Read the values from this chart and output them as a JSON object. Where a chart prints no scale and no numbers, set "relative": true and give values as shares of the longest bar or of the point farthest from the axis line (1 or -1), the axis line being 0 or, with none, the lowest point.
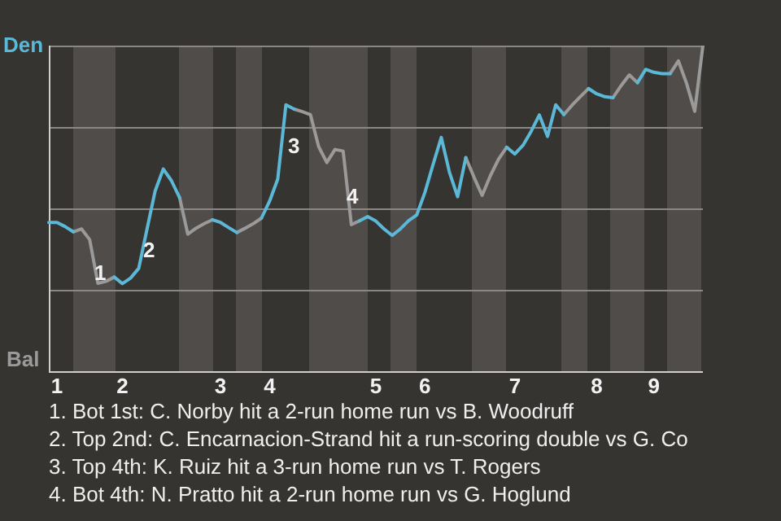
{
  "chart_data": {
    "type": "line",
    "relative": true,
    "categories": [
      null,
      "1",
      null,
      null,
      null,
      null,
      null,
      null,
      null,
      "2",
      null,
      null,
      null,
      null,
      null,
      null,
      null,
      null,
      null,
      null,
      null,
      "3",
      null,
      null,
      null,
      null,
      null,
      "4",
      null,
      null,
      null,
      null,
      null,
      null,
      null,
      null,
      null,
      null,
      null,
      null,
      "5",
      null,
      null,
      null,
      null,
      null,
      "6",
      null,
      null,
      null,
      null,
      null,
      null,
      null,
      null,
      null,
      null,
      "7",
      null,
      null,
      null,
      null,
      null,
      null,
      null,
      null,
      null,
      "8",
      null,
      null,
      null,
      null,
      null,
      null,
      "9",
      null,
      null,
      null,
      null,
      null,
      null
    ],
    "series": [
      {
        "color": "#5bb8d6",
        "values": [
          0.457,
          0.457,
          0.444,
          0.428,
          null,
          null,
          null,
          null,
          0.289,
          0.269,
          0.286,
          0.316,
          0.435,
          0.553,
          0.621,
          0.585,
          0.533,
          null,
          null,
          null,
          0.465,
          0.457,
          0.441,
          0.426,
          null,
          null,
          0.47,
          0.522,
          0.59,
          0.818,
          0.805,
          null,
          null,
          null,
          null,
          null,
          null,
          null,
          0.462,
          0.475,
          0.461,
          0.437,
          0.417,
          0.437,
          0.462,
          0.48,
          0.549,
          0.635,
          0.718,
          0.611,
          0.536,
          0.656,
          null,
          null,
          null,
          null,
          0.688,
          0.667,
          0.694,
          0.737,
          0.787,
          0.721,
          0.818,
          0.788,
          null,
          null,
          0.868,
          0.852,
          0.843,
          0.84,
          null,
          null,
          0.886,
          0.927,
          0.918,
          0.914,
          0.914,
          null,
          null,
          null,
          null
        ]
      },
      {
        "color": "#9a9a9a",
        "values": [
          null,
          null,
          null,
          0.428,
          0.437,
          0.404,
          0.27,
          0.276,
          0.289,
          null,
          null,
          null,
          null,
          null,
          null,
          null,
          0.533,
          0.421,
          0.439,
          0.453,
          0.465,
          null,
          null,
          0.426,
          0.439,
          0.453,
          0.47,
          null,
          null,
          null,
          0.805,
          0.797,
          0.788,
          0.69,
          0.641,
          0.681,
          0.676,
          0.45,
          0.462,
          null,
          null,
          null,
          null,
          null,
          null,
          null,
          null,
          null,
          null,
          null,
          null,
          0.656,
          0.596,
          0.54,
          0.6,
          0.651,
          0.688,
          null,
          null,
          null,
          null,
          null,
          null,
          0.788,
          0.817,
          0.843,
          0.868,
          null,
          null,
          0.84,
          0.877,
          0.91,
          0.886,
          null,
          null,
          null,
          0.914,
          0.953,
          0.884,
          0.798,
          1
        ]
      }
    ],
    "grid": "y",
    "legend": false,
    "marker": "none",
    "line_style": "solid",
    "annotations": [
      "Den",
      "Bal",
      "1",
      "2",
      "3",
      "4",
      "1. Bot 1st: C. Norby hit a 2-run home run vs B. Woodruff",
      "2. Top 2nd: C. Encarnacion-Strand hit a run-scoring double vs G. Co",
      "3. Top 4th: K. Ruiz hit a 3-run home run vs T. Rogers",
      "4. Bot 4th: N. Pratto hit a 2-run home run vs G. Hoglund"
    ]
  }
}
